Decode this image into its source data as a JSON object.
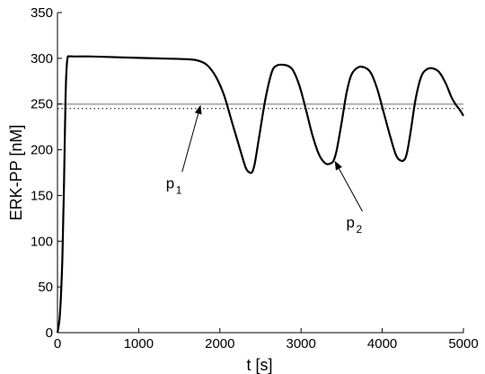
{
  "chart_data": {
    "type": "line",
    "xlabel": "t [s]",
    "ylabel": "ERK-PP [nM]",
    "xlim": [
      0,
      5000
    ],
    "ylim": [
      0,
      350
    ],
    "x_ticks": [
      0,
      1000,
      2000,
      3000,
      4000,
      5000
    ],
    "y_ticks": [
      0,
      50,
      100,
      150,
      200,
      250,
      300,
      350
    ],
    "grid": false,
    "series": [
      {
        "color": "#000000",
        "x": [
          0,
          30,
          60,
          80,
          100,
          120,
          150,
          200,
          400,
          800,
          1200,
          1600,
          1750,
          1850,
          1950,
          2050,
          2150,
          2250,
          2320,
          2370,
          2400,
          2430,
          2480,
          2560,
          2640,
          2700,
          2760,
          2830,
          2900,
          2980,
          3060,
          3140,
          3220,
          3300,
          3360,
          3400,
          3440,
          3500,
          3560,
          3620,
          3700,
          3780,
          3860,
          3940,
          4020,
          4100,
          4170,
          4230,
          4280,
          4310,
          4350,
          4410,
          4480,
          4550,
          4620,
          4700,
          4780,
          4850,
          4900,
          4960,
          5000
        ],
        "y": [
          0,
          20,
          80,
          160,
          260,
          298,
          302,
          302,
          302,
          301,
          300,
          299,
          297,
          292,
          280,
          260,
          230,
          200,
          180,
          175,
          176,
          185,
          212,
          255,
          285,
          292,
          293,
          292,
          287,
          270,
          244,
          216,
          195,
          185,
          185,
          188,
          200,
          230,
          262,
          282,
          290,
          290,
          284,
          266,
          240,
          214,
          194,
          188,
          190,
          199,
          220,
          255,
          280,
          288,
          289,
          285,
          273,
          258,
          250,
          243,
          237
        ]
      }
    ],
    "reference_lines": [
      {
        "y": 250,
        "style": "solid",
        "color": "#b0b0b0"
      },
      {
        "y": 245,
        "style": "dotted",
        "color": "#000000"
      }
    ],
    "annotations": [
      {
        "label": "p",
        "subscript": "1",
        "text_x": 1380,
        "text_y": 158,
        "arrow_to_x": 1760,
        "arrow_to_y": 248
      },
      {
        "label": "p",
        "subscript": "2",
        "text_x": 3600,
        "text_y": 115,
        "arrow_to_x": 3420,
        "arrow_to_y": 187
      }
    ]
  }
}
